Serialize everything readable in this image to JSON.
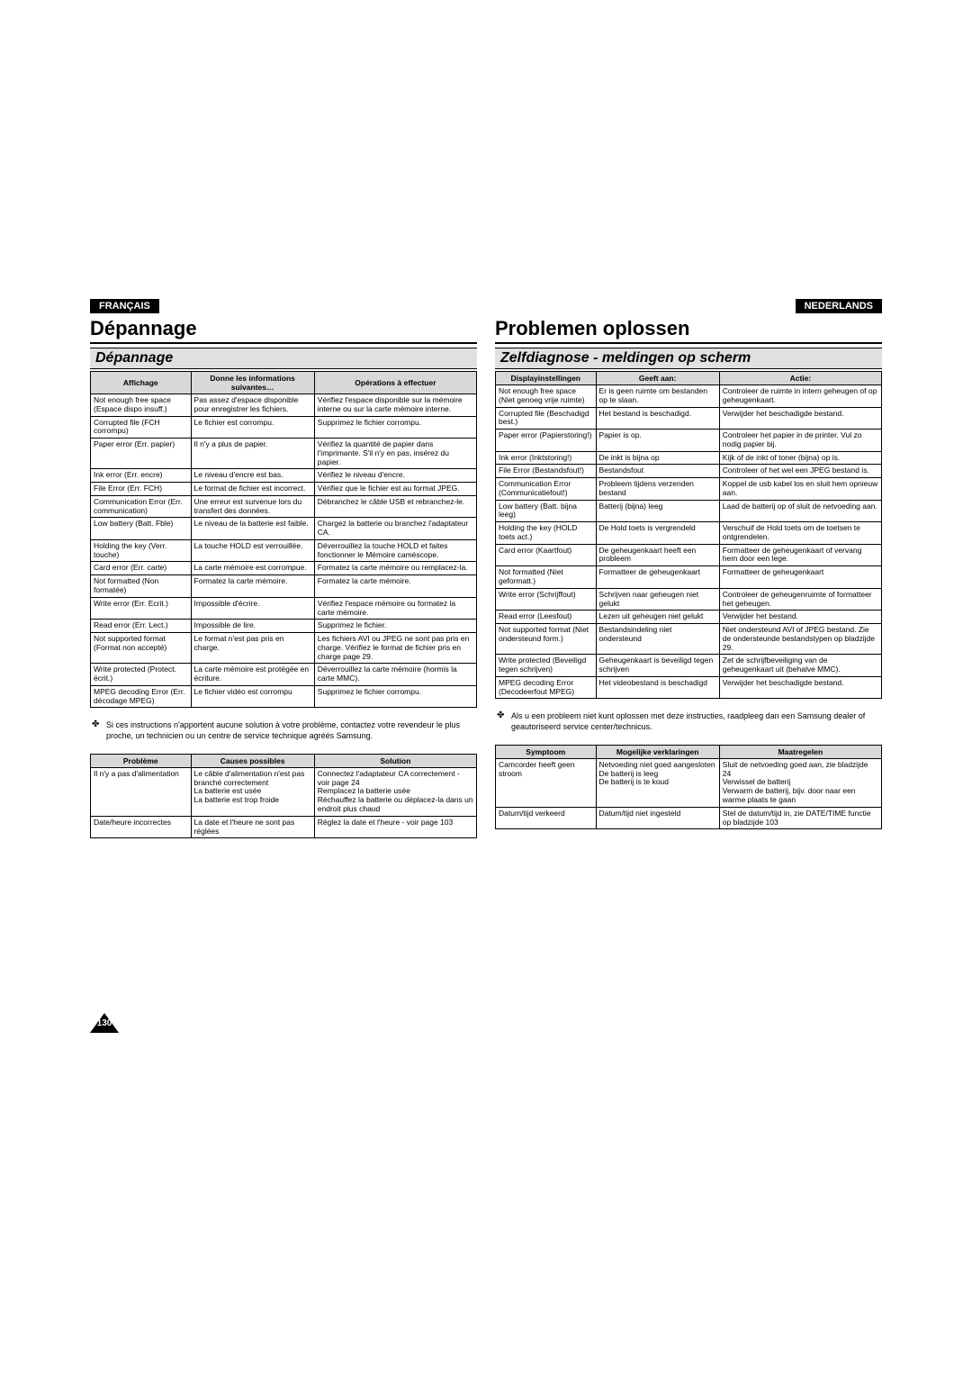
{
  "fr": {
    "lang": "FRANÇAIS",
    "title": "Dépannage",
    "section": "Dépannage",
    "headers": [
      "Affichage",
      "Donne les informations suivantes…",
      "Opérations à effectuer"
    ],
    "rows": [
      [
        "Not enough free space (Espace dispo insuff.)",
        "Pas assez d'espace disponible pour enregistrer les fichiers.",
        "Vérifiez l'espace disponible sur la mémoire interne ou sur la carte mémoire interne."
      ],
      [
        "Corrupted file (FCH corrompu)",
        "Le fichier est corrompu.",
        "Supprimez le fichier corrompu."
      ],
      [
        "Paper error (Err. papier)",
        "Il n'y a plus de papier.",
        "Vérifiez la quantité de papier dans l'imprimante. S'il n'y en pas, insérez du papier."
      ],
      [
        "Ink error (Err. encre)",
        "Le niveau d'encre est bas.",
        "Vérifiez le niveau d'encre."
      ],
      [
        "File Error (Err. FCH)",
        "Le format de fichier est incorrect.",
        "Vérifiez que le fichier est au format JPEG."
      ],
      [
        "Communication Error (Err. communication)",
        "Une erreur est survenue lors du transfert des données.",
        "Débranchez le câble USB et rebranchez-le."
      ],
      [
        "Low battery (Batt. Fble)",
        "Le niveau de la batterie est faible.",
        "Chargez la batterie ou branchez l'adaptateur CA."
      ],
      [
        "Holding the key (Verr. touche)",
        "La touche HOLD est verrouillée.",
        "Déverrouillez la touche HOLD et faites fonctionner le Mémoire caméscope."
      ],
      [
        "Card error (Err. carte)",
        "La carte mémoire est corrompue.",
        "Formatez la carte mémoire ou remplacez-la."
      ],
      [
        "Not formatted (Non formatée)",
        "Formatez la carte mémoire.",
        "Formatez la carte mémoire."
      ],
      [
        "Write error (Err. Ecrit.)",
        "Impossible d'écrire.",
        "Vérifiez l'espace mémoire ou formatez la carte mémoire."
      ],
      [
        "Read error (Err. Lect.)",
        "Impossible de lire.",
        "Supprimez le fichier."
      ],
      [
        "Not supported format (Format non accepté)",
        "Le format n'est pas pris en charge.",
        "Les fichiers AVI ou JPEG ne sont pas pris en charge. Vérifiez le format de fichier pris en charge page 29."
      ],
      [
        "Write protected (Protect. écrit.)",
        "La carte mémoire est protégée en écriture.",
        "Déverrouillez la carte mémoire (hormis la carte MMC)."
      ],
      [
        "MPEG decoding Error (Err. décodage MPEG)",
        "Le fichier vidéo est corrompu",
        "Supprimez le fichier corrompu."
      ]
    ],
    "note": "Si ces instructions n'apportent aucune solution à votre problème, contactez votre revendeur le plus proche, un technicien ou un centre de service technique agréés Samsung.",
    "headers2": [
      "Problème",
      "Causes possibles",
      "Solution"
    ],
    "rows2": [
      [
        "Il n'y a pas d'alimentation",
        "Le câble d'alimentation n'est pas branché correctement\nLa batterie est usée\nLa batterie est trop froide",
        "Connectez l'adaptateur CA correctement - voir page 24\nRemplacez la batterie usée\nRéchauffez la batterie ou déplacez-la dans un endroit plus chaud"
      ],
      [
        "Date/heure incorrectes",
        "La date et l'heure ne sont pas réglées",
        "Réglez la date et l'heure - voir page 103"
      ]
    ]
  },
  "nl": {
    "lang": "NEDERLANDS",
    "title": "Problemen oplossen",
    "section": "Zelfdiagnose - meldingen op scherm",
    "headers": [
      "Displayinstellingen",
      "Geeft aan:",
      "Actie:"
    ],
    "rows": [
      [
        "Not enough free space (Niet genoeg vrije ruimte)",
        "Er is geen ruimte om bestanden op te slaan.",
        "Controleer de ruimte in intern geheugen of op geheugenkaart."
      ],
      [
        "Corrupted file (Beschadigd best.)",
        "Het bestand is beschadigd.",
        "Verwijder het beschadigde bestand."
      ],
      [
        "Paper error (Papierstoring!)",
        "Papier is op.",
        "Controleer het papier in de printer. Vul zo nodig papier bij."
      ],
      [
        "Ink error (Inktstoring!)",
        "De inkt is bijna op",
        "Kijk of de inkt of toner (bijna) op is."
      ],
      [
        "File Error (Bestandsfout!)",
        "Bestandsfout",
        "Controleer of het wel een JPEG bestand is."
      ],
      [
        "Communication Error (Communicatiefout!)",
        "Probleem tijdens verzenden bestand",
        "Koppel de usb kabel los en sluit hem opnieuw aan."
      ],
      [
        "Low battery (Batt. bijna leeg)",
        "Batterij (bijna) leeg",
        "Laad de batterij op of sluit de netvoeding aan."
      ],
      [
        "Holding the key (HOLD toets act.)",
        "De Hold toets is vergrendeld",
        "Verschuif de Hold toets om de toetsen te ontgrendelen."
      ],
      [
        "Card error (Kaartfout)",
        "De geheugenkaart heeft een probleem",
        "Formatteer de geheugenkaart of vervang hem door een lege."
      ],
      [
        "Not formatted (Niet geformatt.)",
        "Formatteer de geheugenkaart",
        "Formatteer de geheugenkaart"
      ],
      [
        "Write error (Schrijffout)",
        "Schrijven naar geheugen niet gelukt",
        "Controleer de geheugenruimte of formatteer het geheugen."
      ],
      [
        "Read error (Leesfout)",
        "Lezen uit geheugen niet gelukt",
        "Verwijder het bestand."
      ],
      [
        "Not supported format (Niet ondersteund form.)",
        "Bestandsindeling niet ondersteund",
        "Niet ondersteund AVI of JPEG bestand. Zie de ondersteunde bestandstypen op bladzijde 29."
      ],
      [
        "Write protected (Beveiligd tegen schrijven)",
        "Geheugenkaart is beveiligd tegen schrijven",
        "Zet de schrijfbeveiliging van de geheugenkaart uit (behalve MMC)."
      ],
      [
        "MPEG decoding Error (Decodeerfout MPEG)",
        "Het videobestand is beschadigd",
        "Verwijder het beschadigde bestand."
      ]
    ],
    "note": "Als u een probleem niet kunt oplossen met deze instructies, raadpleeg dan een Samsung dealer of geautoriseerd service center/technicus.",
    "headers2": [
      "Symptoom",
      "Mogelijke verklaringen",
      "Maatregelen"
    ],
    "rows2": [
      [
        "Camcorder heeft geen stroom",
        "Netvoeding niet goed aangesloten\nDe batterij is leeg\nDe batterij is te koud",
        "Sluit de netvoeding goed aan, zie bladzijde 24\nVerwissel de batterij\nVerwarm de batterij, bijv. door naar een warme plaats te gaan"
      ],
      [
        "Datum/tijd verkeerd",
        "Datum/tijd niet ingesteld",
        "Stel de datum/tijd in, zie DATE/TIME functie op bladzijde 103"
      ]
    ]
  },
  "pageNum": "130"
}
